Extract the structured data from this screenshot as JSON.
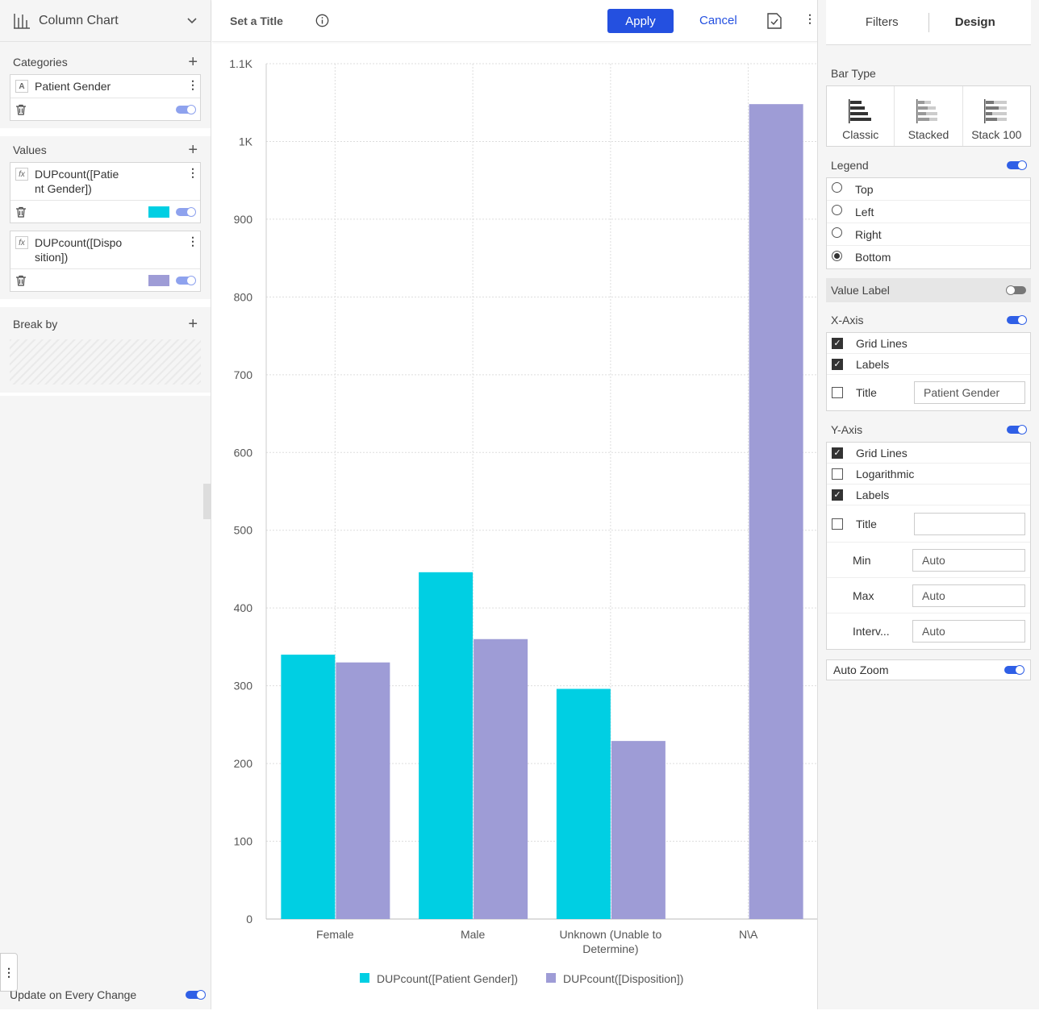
{
  "left": {
    "chart_type": "Column Chart",
    "categories_title": "Categories",
    "category_field": "Patient Gender",
    "values_title": "Values",
    "value_fields": [
      {
        "line1": "DUPcount([Patie",
        "line2": "nt Gender])",
        "color": "#00cfe3"
      },
      {
        "line1": "DUPcount([Dispo",
        "line2": "sition])",
        "color": "#9e9cd6"
      }
    ],
    "breakby_title": "Break by",
    "update_label": "Update on Every Change"
  },
  "center": {
    "title": "Set a Title",
    "apply": "Apply",
    "cancel": "Cancel"
  },
  "chart_data": {
    "type": "bar",
    "categories": [
      "Female",
      "Male",
      "Unknown (Unable to Determine)",
      "N\\A"
    ],
    "category_lines": [
      [
        "Female"
      ],
      [
        "Male"
      ],
      [
        "Unknown (Unable to",
        "Determine)"
      ],
      [
        "N\\A"
      ]
    ],
    "series": [
      {
        "name": "DUPcount([Patient Gender])",
        "values": [
          340,
          446,
          296,
          null
        ],
        "color": "#00cfe3"
      },
      {
        "name": "DUPcount([Disposition])",
        "values": [
          330,
          360,
          229,
          1048
        ],
        "color": "#9e9cd6"
      }
    ],
    "yticks": [
      0,
      100,
      200,
      300,
      400,
      500,
      600,
      700,
      800,
      900,
      1000,
      1100
    ],
    "ytick_labels": [
      "0",
      "100",
      "200",
      "300",
      "400",
      "500",
      "600",
      "700",
      "800",
      "900",
      "1K",
      "1.1K"
    ],
    "ylim": [
      0,
      1100
    ],
    "grid": true,
    "legend_position": "bottom"
  },
  "right": {
    "tabs": [
      "Filters",
      "Design"
    ],
    "bar_type_label": "Bar Type",
    "bar_types": [
      "Classic",
      "Stacked",
      "Stack 100"
    ],
    "legend_label": "Legend",
    "legend_options": [
      "Top",
      "Left",
      "Right",
      "Bottom"
    ],
    "value_label": "Value Label",
    "xaxis_label": "X-Axis",
    "xaxis": {
      "grid": "Grid Lines",
      "labels": "Labels",
      "title": "Title",
      "title_value": "Patient Gender"
    },
    "yaxis_label": "Y-Axis",
    "yaxis": {
      "grid": "Grid Lines",
      "log": "Logarithmic",
      "labels": "Labels",
      "title": "Title",
      "min": "Min",
      "max": "Max",
      "interval": "Interv...",
      "auto": "Auto"
    },
    "auto_zoom": "Auto Zoom"
  }
}
